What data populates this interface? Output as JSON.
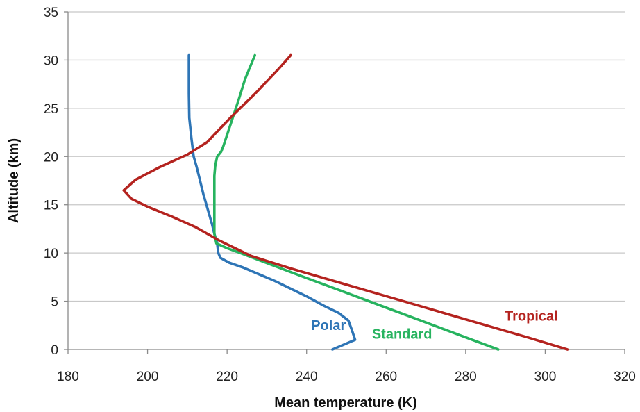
{
  "chart_data": {
    "type": "line",
    "title": "",
    "xlabel": "Mean temperature (K)",
    "ylabel": "Altitude (km)",
    "xlim": [
      180,
      320
    ],
    "ylim": [
      0,
      35
    ],
    "xticks": [
      180,
      200,
      220,
      240,
      260,
      280,
      300,
      320
    ],
    "yticks": [
      0,
      5,
      10,
      15,
      20,
      25,
      30,
      35
    ],
    "grid": "horizontal",
    "legend": "none",
    "series": [
      {
        "name": "Polar",
        "color": "#2E75B6",
        "x": [
          246.5,
          252.2,
          251.4,
          250.5,
          248.0,
          244.0,
          240.0,
          236.0,
          232.0,
          228.0,
          224.0,
          220.5,
          218.3,
          217.8,
          217.5,
          216.8,
          216.2,
          215.5,
          214.8,
          214.1,
          213.5,
          212.9,
          212.3,
          211.6,
          211.0,
          210.5,
          210.4,
          210.4
        ],
        "y": [
          0,
          1.0,
          2.0,
          3.0,
          3.8,
          4.6,
          5.5,
          6.3,
          7.1,
          7.8,
          8.5,
          9.0,
          9.5,
          10.0,
          11.0,
          12.0,
          13.0,
          14.0,
          15.0,
          16.0,
          17.0,
          18.0,
          19.0,
          20.0,
          22.0,
          24.0,
          26.5,
          30.5
        ]
      },
      {
        "name": "Standard",
        "color": "#27B35F",
        "x": [
          288.2,
          278.4,
          268.7,
          258.9,
          249.2,
          239.4,
          229.7,
          223.3,
          220.0,
          217.3,
          216.8,
          216.8,
          216.8,
          216.8,
          217.0,
          217.5,
          218.5,
          219.0,
          221.0,
          223.0,
          224.5,
          227.0
        ],
        "y": [
          0,
          1.5,
          3.0,
          4.5,
          6.0,
          7.5,
          9.0,
          10.0,
          10.5,
          11.0,
          12.0,
          14.0,
          16.0,
          18.0,
          19.0,
          20.0,
          20.5,
          21.0,
          23.5,
          26.0,
          28.0,
          30.5
        ]
      },
      {
        "name": "Tropical",
        "color": "#B4231F",
        "x": [
          305.6,
          296.0,
          286.0,
          276.0,
          266.0,
          256.0,
          246.0,
          236.0,
          226.0,
          218.0,
          212.0,
          206.0,
          200.0,
          196.0,
          194.0,
          197.0,
          203.0,
          210.0,
          215.0,
          218.0,
          221.0,
          224.0,
          227.0,
          230.0,
          233.0,
          236.0
        ],
        "y": [
          0,
          1.2,
          2.4,
          3.6,
          4.8,
          6.0,
          7.2,
          8.4,
          9.7,
          11.3,
          12.7,
          13.8,
          14.8,
          15.6,
          16.5,
          17.6,
          18.9,
          20.2,
          21.5,
          22.8,
          24.1,
          25.3,
          26.5,
          27.8,
          29.1,
          30.5
        ]
      }
    ],
    "annotations": [
      {
        "text": "Polar",
        "x": 245.5,
        "y": 2.0,
        "color": "#2E75B6"
      },
      {
        "text": "Standard",
        "x": 264.0,
        "y": 1.1,
        "color": "#27B35F"
      },
      {
        "text": "Tropical",
        "x": 296.5,
        "y": 3.0,
        "color": "#B4231F"
      }
    ]
  }
}
